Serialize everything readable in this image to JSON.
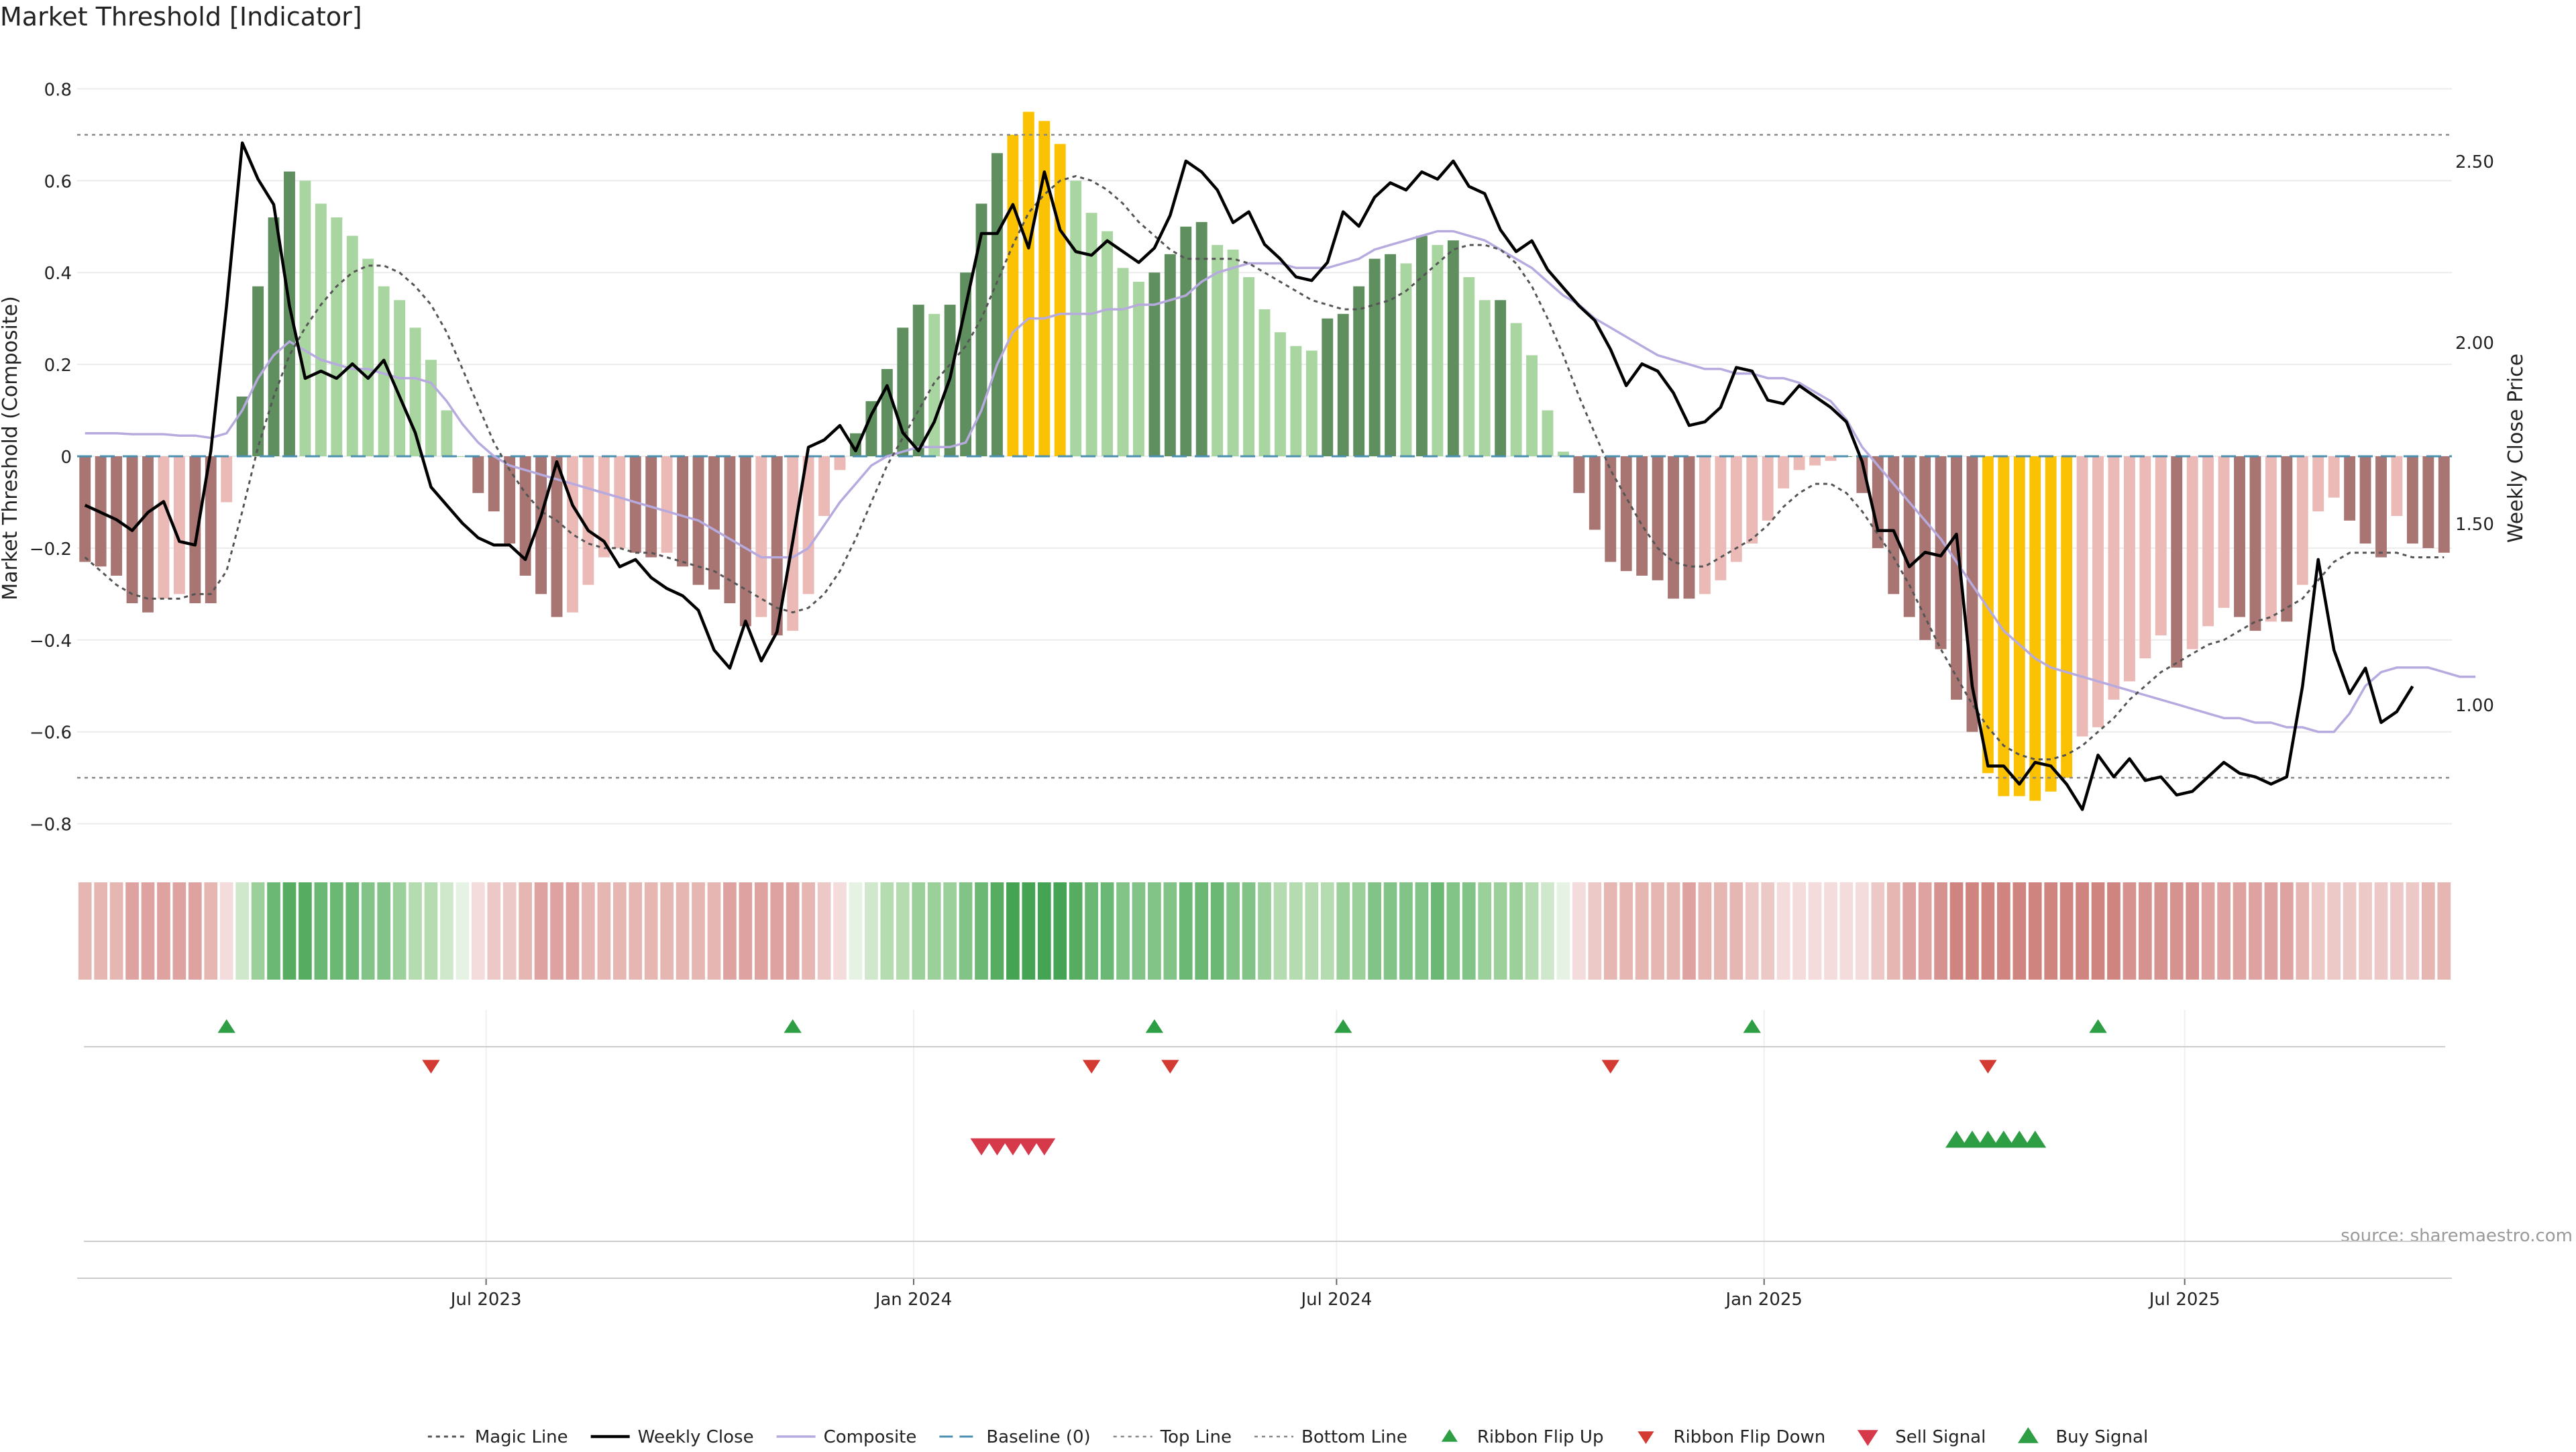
{
  "chart_data": {
    "type": "bar",
    "title": "Market Threshold [Indicator]",
    "ylabel_left": "Market Threshold (Composite)",
    "ylabel_right": "Weekly Close Price",
    "ylim_left": [
      -0.84,
      0.84
    ],
    "ylim_right": [
      0.62,
      2.75
    ],
    "yticks_left": [
      "0.8",
      "0.6",
      "0.4",
      "0.2",
      "0",
      "−0.2",
      "−0.4",
      "−0.6",
      "−0.8"
    ],
    "yticks_left_values": [
      0.8,
      0.6,
      0.4,
      0.2,
      0,
      -0.2,
      -0.4,
      -0.6,
      -0.8
    ],
    "yticks_right": [
      "2.50",
      "2.00",
      "1.50",
      "1.00"
    ],
    "yticks_right_values": [
      2.5,
      2.0,
      1.5,
      1.0
    ],
    "x_start": "2023-01-06",
    "x_end": "2025-10-24",
    "x_ticks": [
      {
        "label": "Jul 2023",
        "date": "2023-07-01"
      },
      {
        "label": "Jan 2024",
        "date": "2024-01-01"
      },
      {
        "label": "Jul 2024",
        "date": "2024-07-01"
      },
      {
        "label": "Jan 2025",
        "date": "2025-01-01"
      },
      {
        "label": "Jul 2025",
        "date": "2025-07-01"
      }
    ],
    "top_line": 0.7,
    "bottom_line": -0.7,
    "baseline": 0,
    "composite": [
      -0.23,
      -0.24,
      -0.26,
      -0.32,
      -0.34,
      -0.31,
      -0.3,
      -0.32,
      -0.32,
      -0.1,
      0.13,
      0.37,
      0.52,
      0.62,
      0.6,
      0.55,
      0.52,
      0.48,
      0.43,
      0.37,
      0.34,
      0.28,
      0.21,
      0.1,
      0.0,
      -0.08,
      -0.12,
      -0.19,
      -0.26,
      -0.3,
      -0.35,
      -0.34,
      -0.28,
      -0.22,
      -0.2,
      -0.21,
      -0.22,
      -0.21,
      -0.24,
      -0.28,
      -0.29,
      -0.32,
      -0.37,
      -0.35,
      -0.39,
      -0.38,
      -0.3,
      -0.13,
      -0.03,
      0.05,
      0.12,
      0.19,
      0.28,
      0.33,
      0.31,
      0.33,
      0.4,
      0.55,
      0.66,
      0.7,
      0.75,
      0.73,
      0.68,
      0.6,
      0.53,
      0.49,
      0.41,
      0.38,
      0.4,
      0.44,
      0.5,
      0.51,
      0.46,
      0.45,
      0.39,
      0.32,
      0.27,
      0.24,
      0.23,
      0.3,
      0.31,
      0.37,
      0.43,
      0.44,
      0.42,
      0.48,
      0.46,
      0.47,
      0.39,
      0.34,
      0.34,
      0.29,
      0.22,
      0.1,
      0.01,
      -0.08,
      -0.16,
      -0.23,
      -0.25,
      -0.26,
      -0.27,
      -0.31,
      -0.31,
      -0.3,
      -0.27,
      -0.23,
      -0.19,
      -0.14,
      -0.07,
      -0.03,
      -0.02,
      -0.01,
      0.0,
      -0.08,
      -0.2,
      -0.3,
      -0.35,
      -0.4,
      -0.42,
      -0.53,
      -0.6,
      -0.69,
      -0.74,
      -0.74,
      -0.75,
      -0.73,
      -0.7,
      -0.61,
      -0.59,
      -0.53,
      -0.49,
      -0.44,
      -0.39,
      -0.46,
      -0.42,
      -0.37,
      -0.33,
      -0.35,
      -0.38,
      -0.36,
      -0.36,
      -0.28,
      -0.12,
      -0.09,
      -0.14,
      -0.19,
      -0.22,
      -0.13,
      -0.19,
      -0.2,
      -0.21
    ],
    "magic_line": [
      -0.22,
      -0.25,
      -0.28,
      -0.3,
      -0.31,
      -0.31,
      -0.31,
      -0.3,
      -0.3,
      -0.25,
      -0.12,
      0.02,
      0.13,
      0.22,
      0.28,
      0.33,
      0.37,
      0.4,
      0.415,
      0.415,
      0.4,
      0.37,
      0.33,
      0.27,
      0.19,
      0.11,
      0.03,
      -0.03,
      -0.08,
      -0.12,
      -0.14,
      -0.17,
      -0.19,
      -0.2,
      -0.2,
      -0.21,
      -0.21,
      -0.22,
      -0.23,
      -0.24,
      -0.25,
      -0.27,
      -0.29,
      -0.31,
      -0.33,
      -0.34,
      -0.33,
      -0.3,
      -0.25,
      -0.18,
      -0.1,
      -0.02,
      0.04,
      0.1,
      0.16,
      0.2,
      0.24,
      0.3,
      0.38,
      0.46,
      0.53,
      0.57,
      0.6,
      0.61,
      0.6,
      0.58,
      0.55,
      0.51,
      0.48,
      0.45,
      0.43,
      0.43,
      0.43,
      0.43,
      0.42,
      0.4,
      0.38,
      0.36,
      0.34,
      0.33,
      0.32,
      0.32,
      0.33,
      0.34,
      0.36,
      0.39,
      0.42,
      0.45,
      0.46,
      0.46,
      0.45,
      0.42,
      0.37,
      0.3,
      0.22,
      0.13,
      0.05,
      -0.03,
      -0.09,
      -0.15,
      -0.2,
      -0.23,
      -0.24,
      -0.24,
      -0.22,
      -0.2,
      -0.18,
      -0.15,
      -0.11,
      -0.08,
      -0.06,
      -0.06,
      -0.08,
      -0.12,
      -0.17,
      -0.22,
      -0.28,
      -0.35,
      -0.42,
      -0.48,
      -0.54,
      -0.59,
      -0.63,
      -0.65,
      -0.66,
      -0.66,
      -0.65,
      -0.63,
      -0.6,
      -0.57,
      -0.53,
      -0.5,
      -0.47,
      -0.45,
      -0.43,
      -0.41,
      -0.4,
      -0.38,
      -0.36,
      -0.35,
      -0.33,
      -0.31,
      -0.27,
      -0.23,
      -0.21,
      -0.21,
      -0.21,
      -0.21,
      -0.22,
      -0.22,
      -0.22
    ],
    "composite_smooth": [
      0.05,
      0.05,
      0.05,
      0.048,
      0.048,
      0.048,
      0.045,
      0.045,
      0.04,
      0.05,
      0.1,
      0.17,
      0.22,
      0.25,
      0.23,
      0.21,
      0.2,
      0.19,
      0.19,
      0.18,
      0.17,
      0.17,
      0.16,
      0.12,
      0.07,
      0.03,
      0.0,
      -0.02,
      -0.03,
      -0.04,
      -0.05,
      -0.06,
      -0.07,
      -0.08,
      -0.09,
      -0.1,
      -0.11,
      -0.12,
      -0.13,
      -0.14,
      -0.16,
      -0.18,
      -0.2,
      -0.22,
      -0.22,
      -0.22,
      -0.2,
      -0.15,
      -0.1,
      -0.06,
      -0.02,
      0.0,
      0.01,
      0.02,
      0.02,
      0.02,
      0.03,
      0.1,
      0.2,
      0.27,
      0.3,
      0.3,
      0.31,
      0.31,
      0.31,
      0.32,
      0.32,
      0.33,
      0.33,
      0.34,
      0.35,
      0.38,
      0.4,
      0.41,
      0.42,
      0.42,
      0.42,
      0.41,
      0.41,
      0.41,
      0.42,
      0.43,
      0.45,
      0.46,
      0.47,
      0.48,
      0.49,
      0.49,
      0.48,
      0.47,
      0.45,
      0.43,
      0.41,
      0.38,
      0.35,
      0.33,
      0.3,
      0.28,
      0.26,
      0.24,
      0.22,
      0.21,
      0.2,
      0.19,
      0.19,
      0.18,
      0.18,
      0.17,
      0.17,
      0.16,
      0.14,
      0.12,
      0.08,
      0.02,
      -0.02,
      -0.06,
      -0.1,
      -0.14,
      -0.18,
      -0.23,
      -0.28,
      -0.33,
      -0.38,
      -0.41,
      -0.44,
      -0.46,
      -0.47,
      -0.48,
      -0.49,
      -0.5,
      -0.51,
      -0.52,
      -0.53,
      -0.54,
      -0.55,
      -0.56,
      -0.57,
      -0.57,
      -0.58,
      -0.58,
      -0.59,
      -0.59,
      -0.6,
      -0.6,
      -0.56,
      -0.5,
      -0.47,
      -0.46,
      -0.46,
      -0.46,
      -0.47,
      -0.48,
      -0.48
    ],
    "weekly_close": [
      1.55,
      1.53,
      1.51,
      1.48,
      1.53,
      1.56,
      1.45,
      1.44,
      1.7,
      2.1,
      2.55,
      2.45,
      2.38,
      2.1,
      1.9,
      1.92,
      1.9,
      1.94,
      1.9,
      1.95,
      1.85,
      1.75,
      1.6,
      1.55,
      1.5,
      1.46,
      1.44,
      1.44,
      1.4,
      1.52,
      1.67,
      1.55,
      1.48,
      1.45,
      1.38,
      1.4,
      1.35,
      1.32,
      1.3,
      1.26,
      1.15,
      1.1,
      1.23,
      1.12,
      1.2,
      1.45,
      1.71,
      1.73,
      1.77,
      1.7,
      1.8,
      1.88,
      1.75,
      1.7,
      1.78,
      1.9,
      2.1,
      2.3,
      2.3,
      2.38,
      2.26,
      2.47,
      2.31,
      2.25,
      2.24,
      2.28,
      2.25,
      2.22,
      2.26,
      2.35,
      2.5,
      2.47,
      2.42,
      2.33,
      2.36,
      2.27,
      2.23,
      2.18,
      2.17,
      2.22,
      2.36,
      2.32,
      2.4,
      2.44,
      2.42,
      2.47,
      2.45,
      2.5,
      2.43,
      2.41,
      2.31,
      2.25,
      2.28,
      2.2,
      2.15,
      2.1,
      2.06,
      1.98,
      1.88,
      1.94,
      1.92,
      1.86,
      1.77,
      1.78,
      1.82,
      1.93,
      1.92,
      1.84,
      1.83,
      1.88,
      1.85,
      1.82,
      1.78,
      1.67,
      1.48,
      1.48,
      1.38,
      1.42,
      1.41,
      1.47,
      1.05,
      0.83,
      0.83,
      0.78,
      0.84,
      0.83,
      0.78,
      0.71,
      0.86,
      0.8,
      0.85,
      0.79,
      0.8,
      0.75,
      0.76,
      0.8,
      0.84,
      0.81,
      0.8,
      0.78,
      0.8,
      1.05,
      1.4,
      1.15,
      1.03,
      1.1,
      0.95,
      0.98,
      1.05
    ],
    "histogram_colors": {
      "strong_bull": "#5f8e5f",
      "bull": "#a9d5a0",
      "strong_bear": "#a87572",
      "bear": "#ecbab6",
      "extreme": "#fbc204"
    },
    "ribbon": {
      "green": [
        "#e6f2e3",
        "#cfe8cc",
        "#b5dbb1",
        "#9cd09a",
        "#82c488",
        "#6ab874",
        "#56ad62",
        "#44a454"
      ],
      "red": [
        "#f4dcdc",
        "#ecc8c6",
        "#e6b6b3",
        "#dea3a0",
        "#d6928f",
        "#cf8480"
      ]
    },
    "ribbon_flip_up": [
      9,
      45,
      68,
      80,
      106,
      128
    ],
    "ribbon_flip_down": [
      22,
      64,
      69,
      97,
      121
    ],
    "sell_signal": [
      57,
      58,
      59,
      60,
      61
    ],
    "buy_signal": [
      119,
      120,
      121,
      122,
      123,
      124
    ],
    "source": "source: sharemaestro.com",
    "legend_position": "bottom-center",
    "legend": [
      {
        "label": "Magic Line",
        "kind": "dotted"
      },
      {
        "label": "Weekly Close",
        "kind": "solid"
      },
      {
        "label": "Composite",
        "kind": "thin"
      },
      {
        "label": "Baseline (0)",
        "kind": "dashed"
      },
      {
        "label": "Top Line",
        "kind": "dotted-light"
      },
      {
        "label": "Bottom Line",
        "kind": "dotted-light"
      },
      {
        "label": "Ribbon Flip Up",
        "kind": "tri-up"
      },
      {
        "label": "Ribbon Flip Down",
        "kind": "tri-down"
      },
      {
        "label": "Sell Signal",
        "kind": "tri-down-big"
      },
      {
        "label": "Buy Signal",
        "kind": "tri-up-big"
      }
    ],
    "colors": {
      "magic": "#555555",
      "close": "#000000",
      "composite_line": "#b7aadf",
      "baseline": "#4b8fb0",
      "threshold": "#888888",
      "flip_up": "#2e9e44",
      "flip_down": "#d23a32",
      "sell": "#d6394a",
      "buy": "#2e9e44"
    }
  }
}
